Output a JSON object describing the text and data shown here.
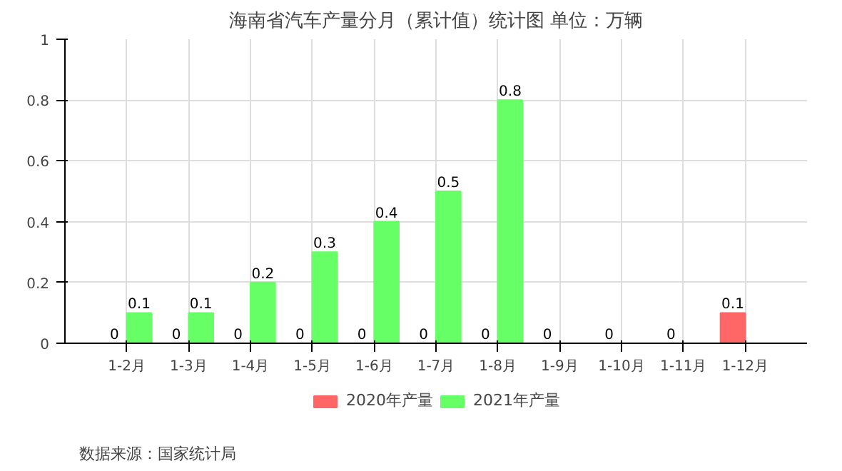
{
  "chart_data": {
    "type": "bar",
    "title": "海南省汽车产量分月（累计值）统计图 单位：万辆",
    "categories": [
      "1-2月",
      "1-3月",
      "1-4月",
      "1-5月",
      "1-6月",
      "1-7月",
      "1-8月",
      "1-9月",
      "1-10月",
      "1-11月",
      "1-12月"
    ],
    "series": [
      {
        "name": "2020年产量",
        "color": "#ff6666",
        "values": [
          0,
          0,
          0,
          0,
          0,
          0,
          0,
          0,
          0,
          0,
          0.1
        ]
      },
      {
        "name": "2021年产量",
        "color": "#66ff66",
        "values": [
          0.1,
          0.1,
          0.2,
          0.3,
          0.4,
          0.5,
          0.8,
          null,
          null,
          null,
          null
        ]
      }
    ],
    "ylim": [
      0,
      1
    ],
    "yticks": [
      0,
      0.2,
      0.4,
      0.6,
      0.8,
      1
    ],
    "grid": true,
    "legend": "bottom",
    "data_labels": true,
    "annotations": [
      "数据来源：国家统计局"
    ]
  }
}
